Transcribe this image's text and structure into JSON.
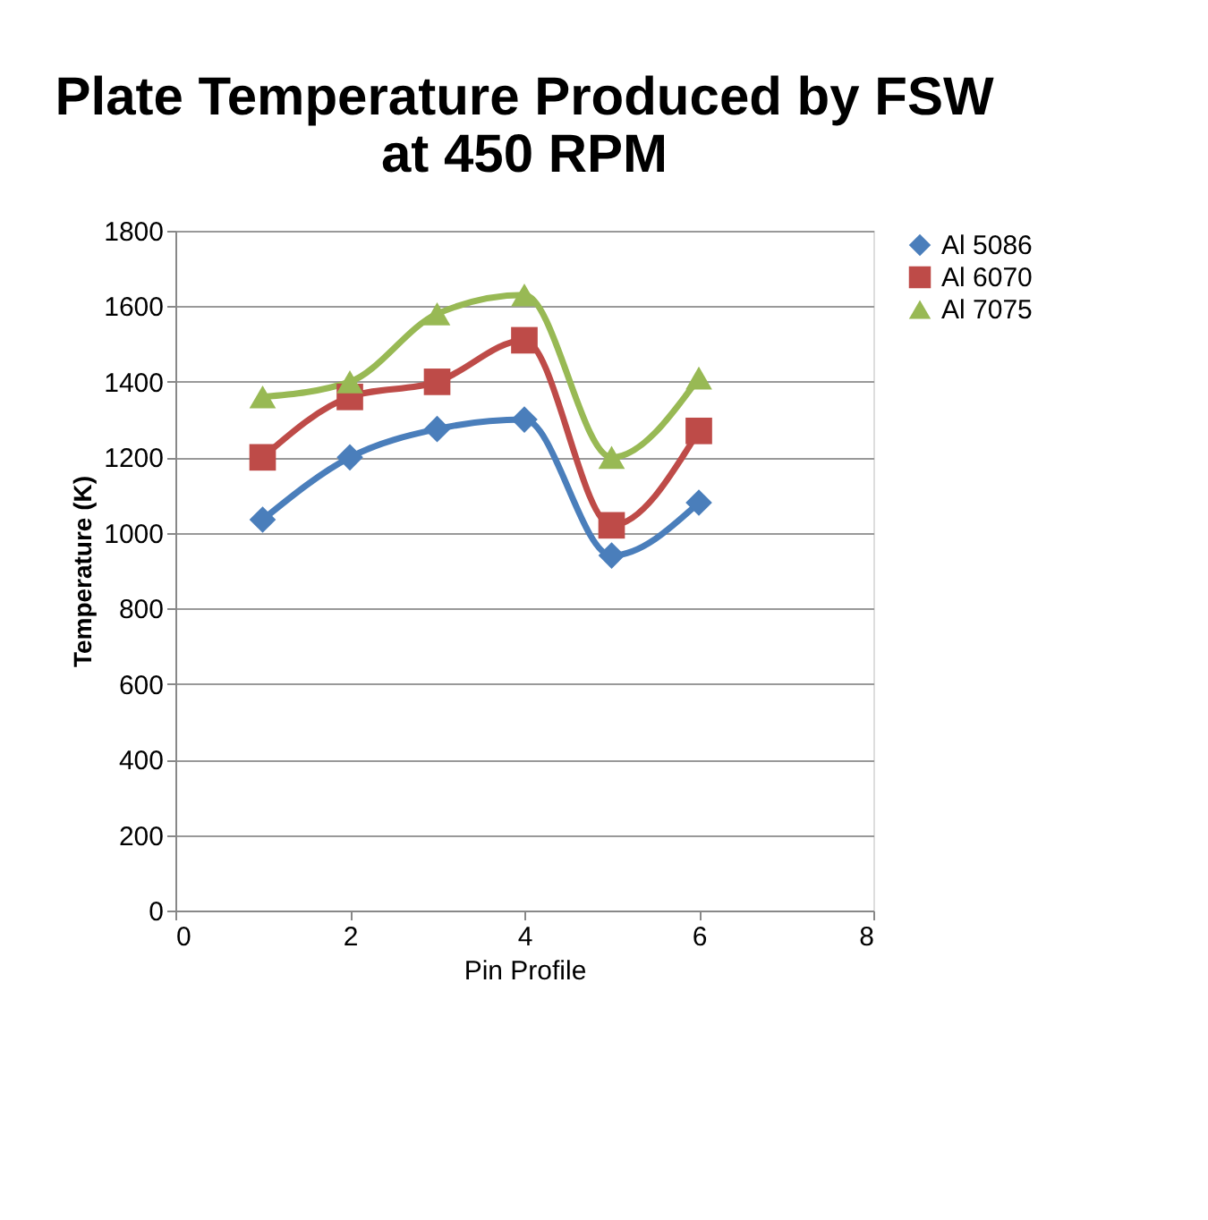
{
  "chart_data": {
    "type": "line",
    "title": [
      "Plate Temperature Produced by FSW",
      "at 450 RPM"
    ],
    "xlabel": "Pin Profile",
    "ylabel": "Temperature (K)",
    "x": [
      1,
      2,
      3,
      4,
      5,
      6
    ],
    "series": [
      {
        "name": "Al 5086",
        "color": "#4a7ebb",
        "marker": "diamond",
        "values": [
          1035,
          1200,
          1275,
          1300,
          940,
          1080
        ]
      },
      {
        "name": "Al 6070",
        "color": "#be4b48",
        "marker": "square",
        "values": [
          1200,
          1360,
          1400,
          1510,
          1020,
          1270
        ]
      },
      {
        "name": "Al 7075",
        "color": "#98b954",
        "marker": "triangle",
        "values": [
          1360,
          1400,
          1580,
          1630,
          1200,
          1410
        ]
      }
    ],
    "xlim": [
      0,
      8
    ],
    "xticks": [
      0,
      2,
      4,
      6,
      8
    ],
    "ylim": [
      0,
      1800
    ],
    "yticks": [
      0,
      200,
      400,
      600,
      800,
      1000,
      1200,
      1400,
      1600,
      1800
    ],
    "grid": "y",
    "legend": "right",
    "line_style": "solid"
  }
}
